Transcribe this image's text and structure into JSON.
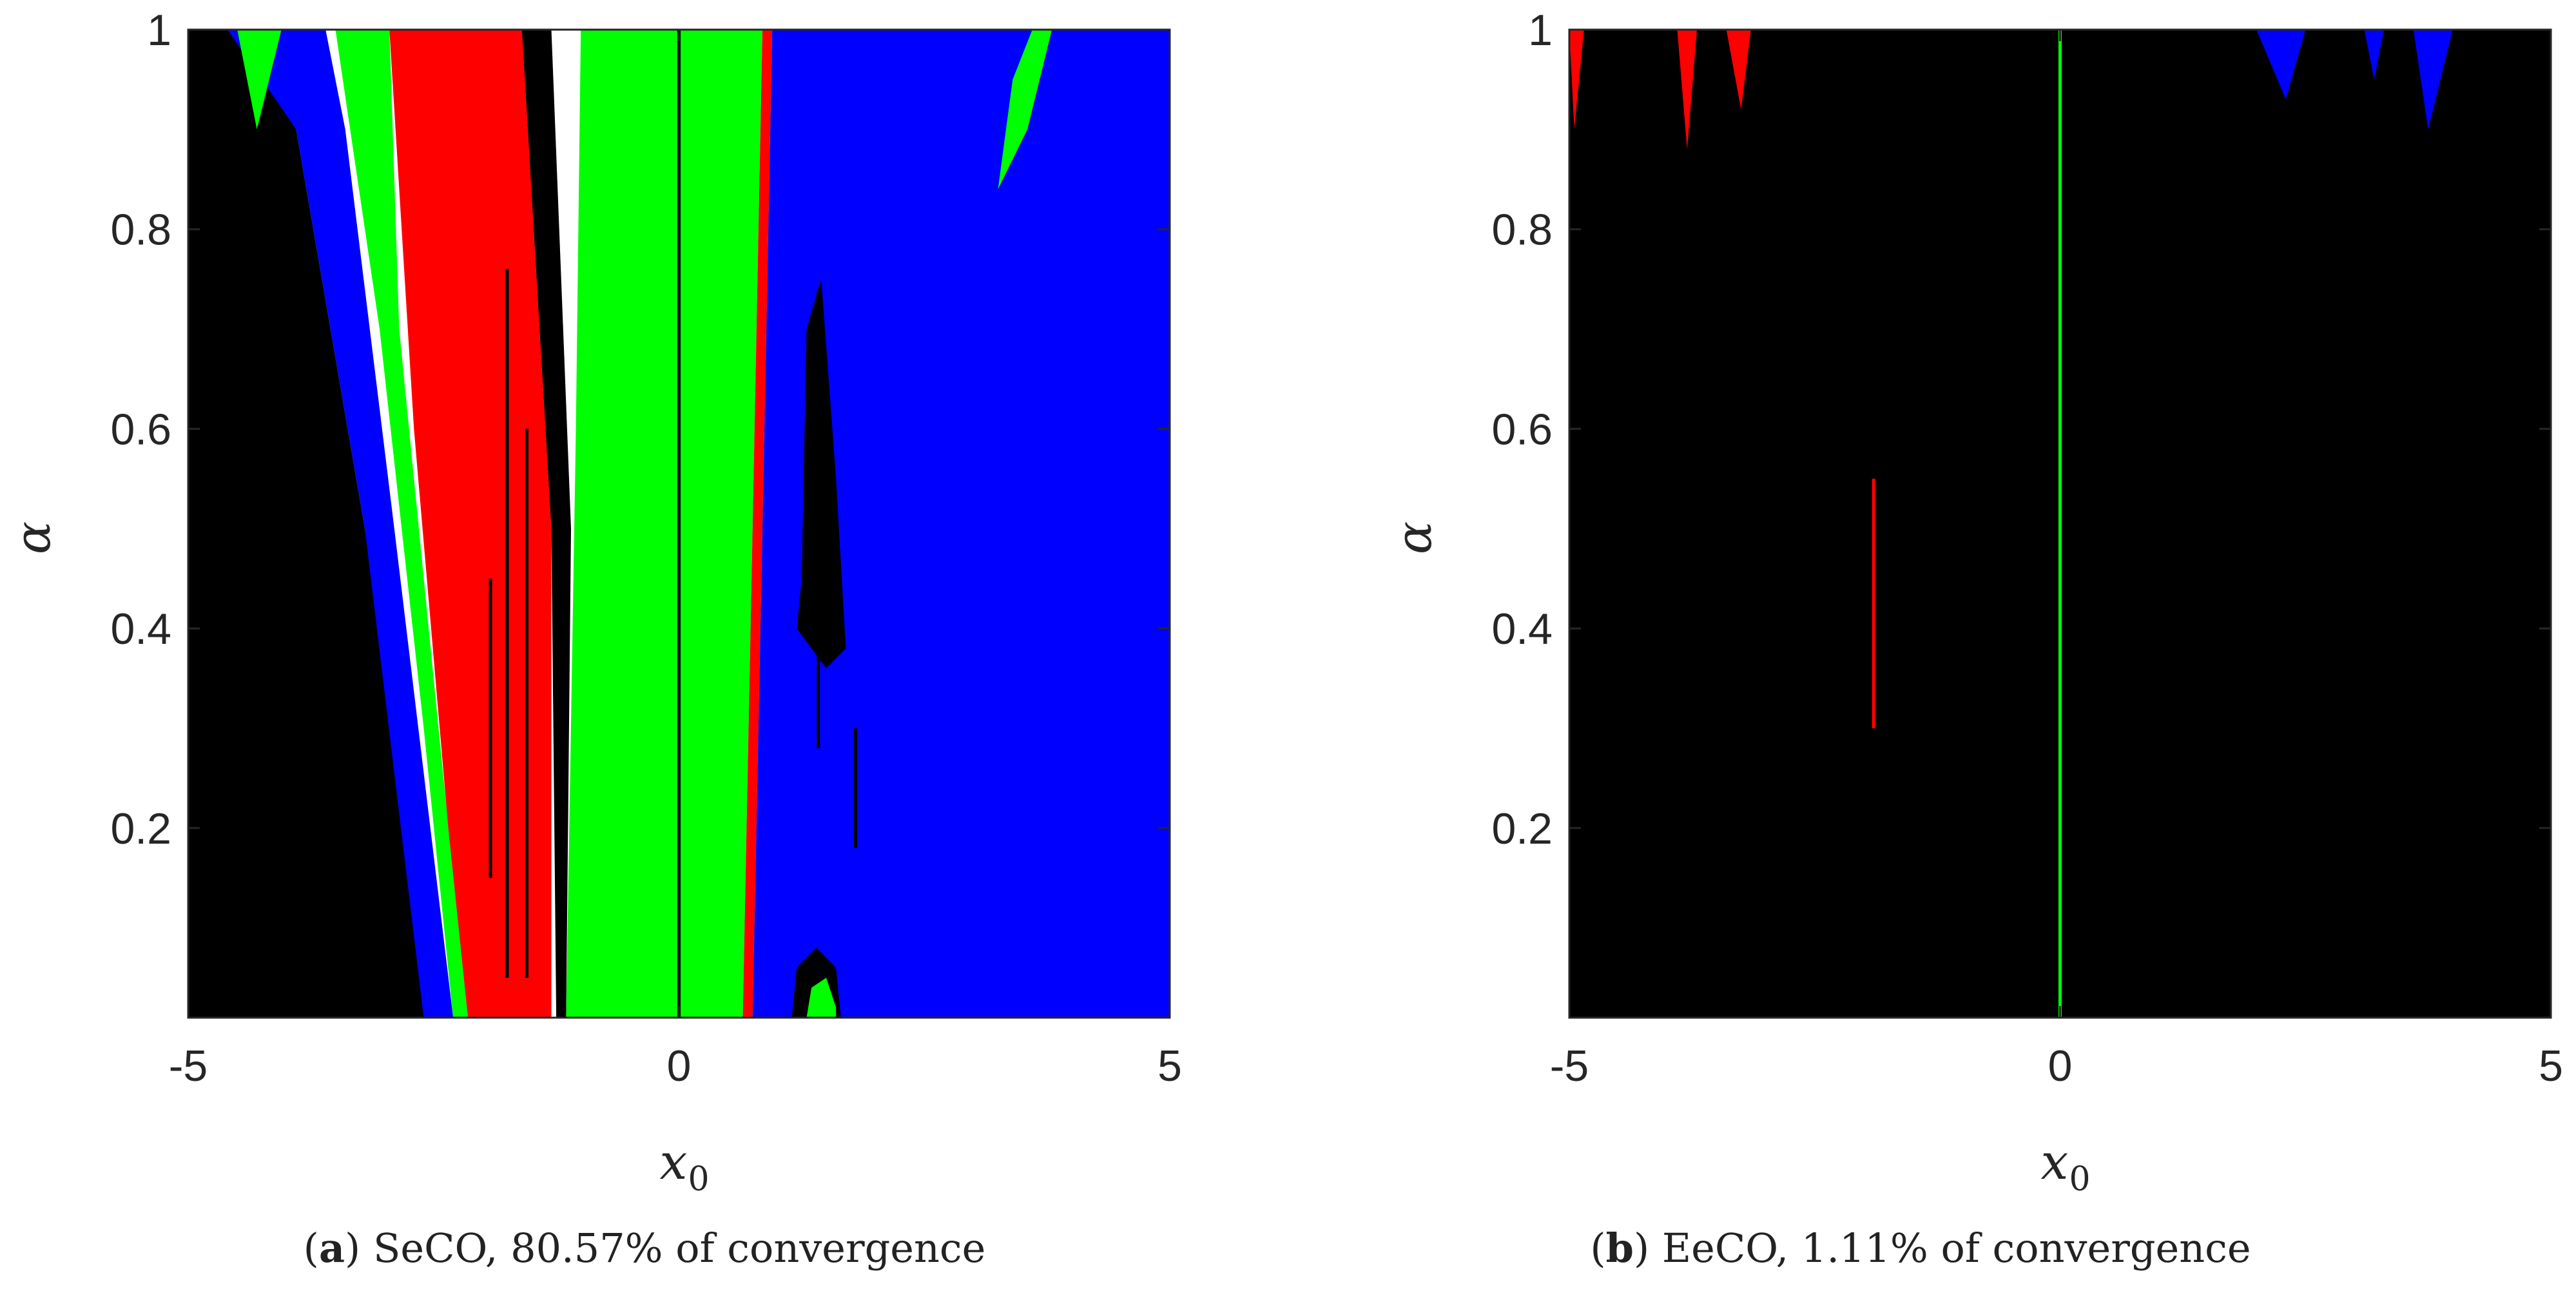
{
  "chart_data": [
    {
      "type": "heatmap",
      "panel_tag": "a",
      "caption": "SeCO, 80.57% of convergence",
      "xlabel": "x",
      "xlabel_sub": "0",
      "ylabel": "α",
      "xlim": [
        -5,
        5
      ],
      "ylim": [
        0.01,
        1
      ],
      "x_ticks": [
        -5,
        0,
        5
      ],
      "y_ticks": [
        0.2,
        0.4,
        0.6,
        0.8,
        1
      ],
      "x_tick_labels": [
        "-5",
        "0",
        "5"
      ],
      "y_tick_labels": [
        "0.2",
        "0.4",
        "0.6",
        "0.8",
        "1"
      ],
      "colors": {
        "black": "#000000",
        "blue": "#0000ff",
        "green": "#00ff00",
        "red": "#ff0000"
      },
      "regions": [
        {
          "color": "black",
          "poly": [
            [
              -5,
              0.01
            ],
            [
              -2.45,
              0.01
            ],
            [
              -3.2,
              0.5
            ],
            [
              -3.9,
              0.9
            ],
            [
              -4.5,
              1
            ],
            [
              -5,
              1
            ]
          ]
        },
        {
          "color": "blue",
          "poly": [
            [
              -4.6,
              1
            ],
            [
              -3.9,
              0.9
            ],
            [
              -3.2,
              0.5
            ],
            [
              -2.6,
              0.01
            ],
            [
              -2.3,
              0.01
            ],
            [
              -2.9,
              0.5
            ],
            [
              -3.4,
              0.9
            ],
            [
              -3.6,
              1
            ]
          ]
        },
        {
          "color": "green",
          "poly": [
            [
              -3.5,
              1
            ],
            [
              -3.05,
              0.7
            ],
            [
              -2.6,
              0.3
            ],
            [
              -2.3,
              0.01
            ],
            [
              -2.15,
              0.01
            ],
            [
              -2.45,
              0.3
            ],
            [
              -2.85,
              0.7
            ],
            [
              -2.95,
              1
            ]
          ]
        },
        {
          "color": "red",
          "poly": [
            [
              -2.95,
              1
            ],
            [
              -2.7,
              0.6
            ],
            [
              -2.35,
              0.2
            ],
            [
              -2.15,
              0.01
            ],
            [
              -1.3,
              0.01
            ],
            [
              -1.3,
              0.5
            ],
            [
              -1.6,
              1
            ]
          ]
        },
        {
          "color": "black",
          "poly": [
            [
              -1.6,
              1
            ],
            [
              -1.3,
              0.5
            ],
            [
              -1.25,
              0.01
            ],
            [
              -1.15,
              0.01
            ],
            [
              -1.1,
              0.5
            ],
            [
              -1.3,
              1
            ]
          ]
        },
        {
          "color": "green",
          "poly": [
            [
              -1.0,
              1
            ],
            [
              -1.05,
              0.6
            ],
            [
              -1.15,
              0.01
            ],
            [
              0.65,
              0.01
            ],
            [
              0.75,
              0.5
            ],
            [
              0.85,
              1
            ]
          ]
        },
        {
          "color": "red",
          "poly": [
            [
              0.85,
              1
            ],
            [
              0.75,
              0.5
            ],
            [
              0.65,
              0.01
            ],
            [
              0.75,
              0.01
            ],
            [
              0.85,
              0.5
            ],
            [
              0.95,
              1
            ]
          ]
        },
        {
          "color": "blue",
          "poly": [
            [
              0.95,
              1
            ],
            [
              0.85,
              0.5
            ],
            [
              0.75,
              0.01
            ],
            [
              5,
              0.01
            ],
            [
              5,
              1
            ]
          ]
        },
        {
          "color": "black",
          "poly": [
            [
              1.2,
              0.4
            ],
            [
              1.25,
              0.45
            ],
            [
              1.3,
              0.7
            ],
            [
              1.45,
              0.75
            ],
            [
              1.6,
              0.55
            ],
            [
              1.7,
              0.38
            ],
            [
              1.5,
              0.36
            ]
          ]
        },
        {
          "color": "black",
          "poly": [
            [
              1.15,
              0.01
            ],
            [
              1.2,
              0.06
            ],
            [
              1.4,
              0.08
            ],
            [
              1.6,
              0.06
            ],
            [
              1.65,
              0.01
            ]
          ]
        },
        {
          "color": "green",
          "poly": [
            [
              1.3,
              0.01
            ],
            [
              1.35,
              0.04
            ],
            [
              1.5,
              0.05
            ],
            [
              1.6,
              0.02
            ],
            [
              1.6,
              0.01
            ]
          ]
        },
        {
          "color": "green",
          "poly": [
            [
              3.25,
              0.84
            ],
            [
              3.4,
              0.95
            ],
            [
              3.6,
              1
            ],
            [
              3.8,
              1
            ],
            [
              3.55,
              0.9
            ]
          ]
        },
        {
          "color": "green",
          "poly": [
            [
              -4.5,
              1
            ],
            [
              -4.3,
              0.9
            ],
            [
              -4.05,
              1
            ]
          ]
        },
        {
          "color": "black",
          "poly": [
            [
              -4.05,
              0.62
            ],
            [
              -3.95,
              0.75
            ],
            [
              -3.8,
              0.6
            ],
            [
              -3.7,
              0.53
            ],
            [
              -3.95,
              0.55
            ]
          ]
        }
      ],
      "lines": [
        {
          "color": "black",
          "x": 0,
          "from": 0.01,
          "to": 1
        },
        {
          "color": "black",
          "x": -1.75,
          "from": 0.05,
          "to": 0.76
        },
        {
          "color": "black",
          "x": -1.55,
          "from": 0.05,
          "to": 0.6
        },
        {
          "color": "black",
          "x": -1.92,
          "from": 0.15,
          "to": 0.45
        },
        {
          "color": "black",
          "x": 1.42,
          "from": 0.28,
          "to": 0.74
        },
        {
          "color": "black",
          "x": 1.8,
          "from": 0.18,
          "to": 0.3
        }
      ]
    },
    {
      "type": "heatmap",
      "panel_tag": "b",
      "caption": "EeCO, 1.11% of convergence",
      "xlabel": "x",
      "xlabel_sub": "0",
      "ylabel": "α",
      "xlim": [
        -5,
        5
      ],
      "ylim": [
        0.01,
        1
      ],
      "x_ticks": [
        -5,
        0,
        5
      ],
      "y_ticks": [
        0.2,
        0.4,
        0.6,
        0.8,
        1
      ],
      "x_tick_labels": [
        "-5",
        "0",
        "5"
      ],
      "y_tick_labels": [
        "0.2",
        "0.4",
        "0.6",
        "0.8",
        "1"
      ],
      "colors": {
        "black": "#000000",
        "blue": "#0000ff",
        "green": "#00ff00",
        "red": "#ff0000"
      },
      "regions": [
        {
          "color": "black",
          "poly": [
            [
              -5,
              0.01
            ],
            [
              5,
              0.01
            ],
            [
              5,
              1
            ],
            [
              -5,
              1
            ]
          ]
        },
        {
          "color": "red",
          "poly": [
            [
              -5,
              1
            ],
            [
              -4.95,
              0.9
            ],
            [
              -4.85,
              1
            ]
          ]
        },
        {
          "color": "red",
          "poly": [
            [
              -3.9,
              1
            ],
            [
              -3.8,
              0.88
            ],
            [
              -3.7,
              1
            ]
          ]
        },
        {
          "color": "red",
          "poly": [
            [
              -3.4,
              1
            ],
            [
              -3.25,
              0.92
            ],
            [
              -3.15,
              1
            ]
          ]
        },
        {
          "color": "blue",
          "poly": [
            [
              2.0,
              1
            ],
            [
              2.3,
              0.93
            ],
            [
              2.5,
              1
            ]
          ]
        },
        {
          "color": "blue",
          "poly": [
            [
              3.6,
              1
            ],
            [
              3.75,
              0.9
            ],
            [
              4.0,
              1
            ]
          ]
        },
        {
          "color": "blue",
          "poly": [
            [
              3.1,
              1
            ],
            [
              3.2,
              0.95
            ],
            [
              3.3,
              1
            ]
          ]
        }
      ],
      "lines": [
        {
          "color": "green",
          "x": 0,
          "from": 0.01,
          "to": 1
        },
        {
          "color": "red",
          "x": -1.9,
          "from": 0.3,
          "to": 0.55
        }
      ]
    }
  ]
}
